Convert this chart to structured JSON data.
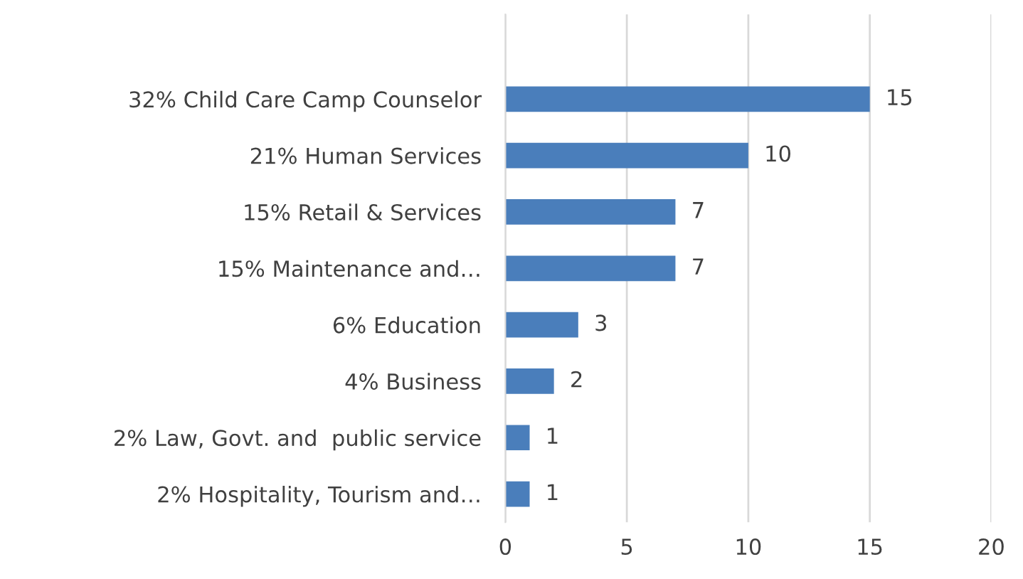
{
  "chart_data": {
    "type": "bar",
    "orientation": "horizontal",
    "categories": [
      "32% Child Care Camp Counselor",
      "21% Human Services",
      "15% Retail & Services",
      "15% Maintenance and…",
      "6% Education",
      "4% Business",
      "2% Law, Govt. and  public service",
      "2% Hospitality, Tourism and…"
    ],
    "values": [
      15,
      10,
      7,
      7,
      3,
      2,
      1,
      1
    ],
    "color": "#4a7ebb",
    "xlim": [
      0,
      20
    ],
    "xticks": [
      0,
      5,
      10,
      15,
      20
    ],
    "grid": "x",
    "data_labels": true
  }
}
